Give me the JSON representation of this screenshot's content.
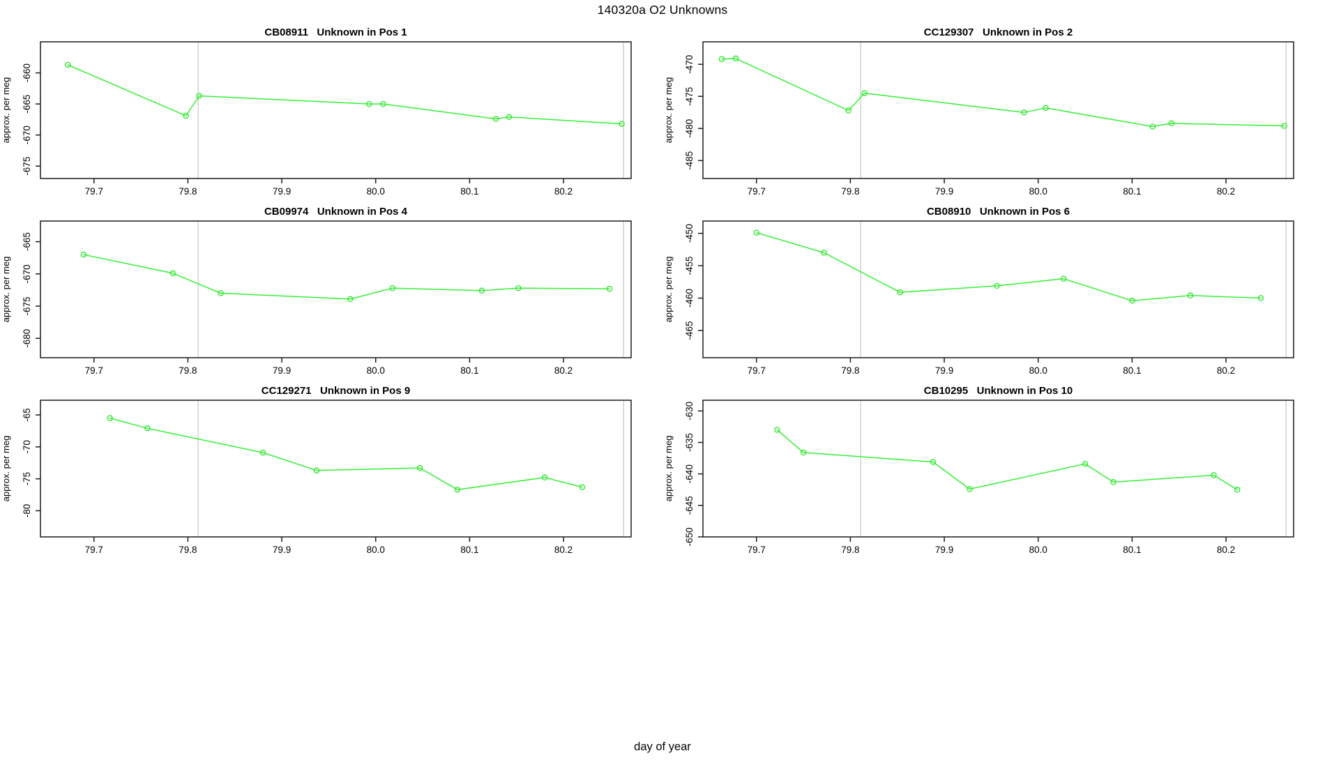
{
  "page_title": "140320a  O2 Unknowns",
  "xaxis_label": "day of year",
  "colors": {
    "line": "#35f035",
    "marker": "#2ae52a",
    "gridline": "#d4d4d4",
    "axis": "#1a1a1a",
    "background": "#ffffff"
  },
  "chart_data": [
    {
      "type": "line",
      "sample_id": "CB08911",
      "position_label": "Unknown in Pos 1",
      "title": "CB08911   Unknown in Pos 1",
      "ylabel": "approx. per meg",
      "x": [
        79.672,
        79.798,
        79.812,
        79.993,
        80.008,
        80.128,
        80.142,
        80.262
      ],
      "y": [
        -658.7,
        -666.9,
        -663.7,
        -665.0,
        -665.0,
        -667.4,
        -667.1,
        -668.2
      ],
      "xlim": [
        79.643,
        80.272
      ],
      "ylim": [
        -677.0,
        -655.0
      ],
      "xticks": [
        79.7,
        79.8,
        79.9,
        80.0,
        80.1,
        80.2
      ],
      "xtick_labels": [
        "79.7",
        "79.8",
        "79.9",
        "80.0",
        "80.1",
        "80.2"
      ],
      "yticks": [
        -660,
        -665,
        -670,
        -675
      ],
      "ytick_labels": [
        "-660",
        "-665",
        "-670",
        "-675"
      ],
      "vlines": [
        79.811,
        80.264
      ],
      "marker": "open-circle",
      "grid": "vertical-reference-lines-only",
      "legend": "none"
    },
    {
      "type": "line",
      "sample_id": "CC129307",
      "position_label": "Unknown in Pos 2",
      "title": "CC129307   Unknown in Pos 2",
      "ylabel": "approx. per meg",
      "x": [
        79.663,
        79.678,
        79.798,
        79.815,
        79.985,
        80.008,
        80.122,
        80.142,
        80.262
      ],
      "y": [
        -469.2,
        -469.1,
        -477.2,
        -474.5,
        -477.5,
        -476.8,
        -479.7,
        -479.2,
        -479.6
      ],
      "xlim": [
        79.643,
        80.272
      ],
      "ylim": [
        -487.8,
        -466.5
      ],
      "xticks": [
        79.7,
        79.8,
        79.9,
        80.0,
        80.1,
        80.2
      ],
      "xtick_labels": [
        "79.7",
        "79.8",
        "79.9",
        "80.0",
        "80.1",
        "80.2"
      ],
      "yticks": [
        -470,
        -475,
        -480,
        -485
      ],
      "ytick_labels": [
        "-470",
        "-475",
        "-480",
        "-485"
      ],
      "vlines": [
        79.811,
        80.264
      ],
      "marker": "open-circle",
      "grid": "vertical-reference-lines-only",
      "legend": "none"
    },
    {
      "type": "line",
      "sample_id": "CB09974",
      "position_label": "Unknown in Pos 4",
      "title": "CB09974   Unknown in Pos 4",
      "ylabel": "approx. per meg",
      "x": [
        79.689,
        79.784,
        79.835,
        79.973,
        80.018,
        80.113,
        80.152,
        80.249
      ],
      "y": [
        -667.0,
        -669.9,
        -673.0,
        -673.9,
        -672.2,
        -672.6,
        -672.2,
        -672.3
      ],
      "xlim": [
        79.643,
        80.272
      ],
      "ylim": [
        -683.0,
        -661.8
      ],
      "xticks": [
        79.7,
        79.8,
        79.9,
        80.0,
        80.1,
        80.2
      ],
      "xtick_labels": [
        "79.7",
        "79.8",
        "79.9",
        "80.0",
        "80.1",
        "80.2"
      ],
      "yticks": [
        -665,
        -670,
        -675,
        -680
      ],
      "ytick_labels": [
        "-665",
        "-670",
        "-675",
        "-680"
      ],
      "vlines": [
        79.811,
        80.264
      ],
      "marker": "open-circle",
      "grid": "vertical-reference-lines-only",
      "legend": "none"
    },
    {
      "type": "line",
      "sample_id": "CB08910",
      "position_label": "Unknown in Pos 6",
      "title": "CB08910   Unknown in Pos 6",
      "ylabel": "approx. per meg",
      "x": [
        79.7,
        79.772,
        79.853,
        79.956,
        80.027,
        80.1,
        80.162,
        80.237
      ],
      "y": [
        -449.9,
        -453.0,
        -459.1,
        -458.1,
        -457.0,
        -460.4,
        -459.6,
        -460.0
      ],
      "xlim": [
        79.643,
        80.272
      ],
      "ylim": [
        -469.2,
        -448.1
      ],
      "xticks": [
        79.7,
        79.8,
        79.9,
        80.0,
        80.1,
        80.2
      ],
      "xtick_labels": [
        "79.7",
        "79.8",
        "79.9",
        "80.0",
        "80.1",
        "80.2"
      ],
      "yticks": [
        -450,
        -455,
        -460,
        -465
      ],
      "ytick_labels": [
        "-450",
        "-455",
        "-460",
        "-465"
      ],
      "vlines": [
        79.811,
        80.264
      ],
      "marker": "open-circle",
      "grid": "vertical-reference-lines-only",
      "legend": "none"
    },
    {
      "type": "line",
      "sample_id": "CC129271",
      "position_label": "Unknown in Pos 9",
      "title": "CC129271   Unknown in Pos 9",
      "ylabel": "approx. per meg",
      "x": [
        79.717,
        79.757,
        79.88,
        79.937,
        80.047,
        80.087,
        80.18,
        80.22
      ],
      "y": [
        -65.5,
        -67.1,
        -70.9,
        -73.7,
        -73.3,
        -76.7,
        -74.8,
        -76.3
      ],
      "xlim": [
        79.643,
        80.272
      ],
      "ylim": [
        -84.1,
        -62.7
      ],
      "xticks": [
        79.7,
        79.8,
        79.9,
        80.0,
        80.1,
        80.2
      ],
      "xtick_labels": [
        "79.7",
        "79.8",
        "79.9",
        "80.0",
        "80.1",
        "80.2"
      ],
      "yticks": [
        -65,
        -70,
        -75,
        -80
      ],
      "ytick_labels": [
        "-65",
        "-70",
        "-75",
        "-80"
      ],
      "vlines": [
        79.811,
        80.264
      ],
      "marker": "open-circle",
      "grid": "vertical-reference-lines-only",
      "legend": "none"
    },
    {
      "type": "line",
      "sample_id": "CB10295",
      "position_label": "Unknown in Pos 10",
      "title": "CB10295   Unknown in Pos 10",
      "ylabel": "approx. per meg",
      "x": [
        79.722,
        79.75,
        79.888,
        79.927,
        80.05,
        80.08,
        80.187,
        80.212
      ],
      "y": [
        -633.0,
        -636.6,
        -638.1,
        -642.4,
        -638.4,
        -641.3,
        -640.2,
        -642.5
      ],
      "xlim": [
        79.643,
        80.272
      ],
      "ylim": [
        -650.0,
        -628.3
      ],
      "xticks": [
        79.7,
        79.8,
        79.9,
        80.0,
        80.1,
        80.2
      ],
      "xtick_labels": [
        "79.7",
        "79.8",
        "79.9",
        "80.0",
        "80.1",
        "80.2"
      ],
      "yticks": [
        -630,
        -635,
        -640,
        -645,
        -650
      ],
      "ytick_labels": [
        "-630",
        "-635",
        "-640",
        "-645",
        "-650"
      ],
      "vlines": [
        79.811,
        80.264
      ],
      "marker": "open-circle",
      "grid": "vertical-reference-lines-only",
      "legend": "none"
    }
  ]
}
